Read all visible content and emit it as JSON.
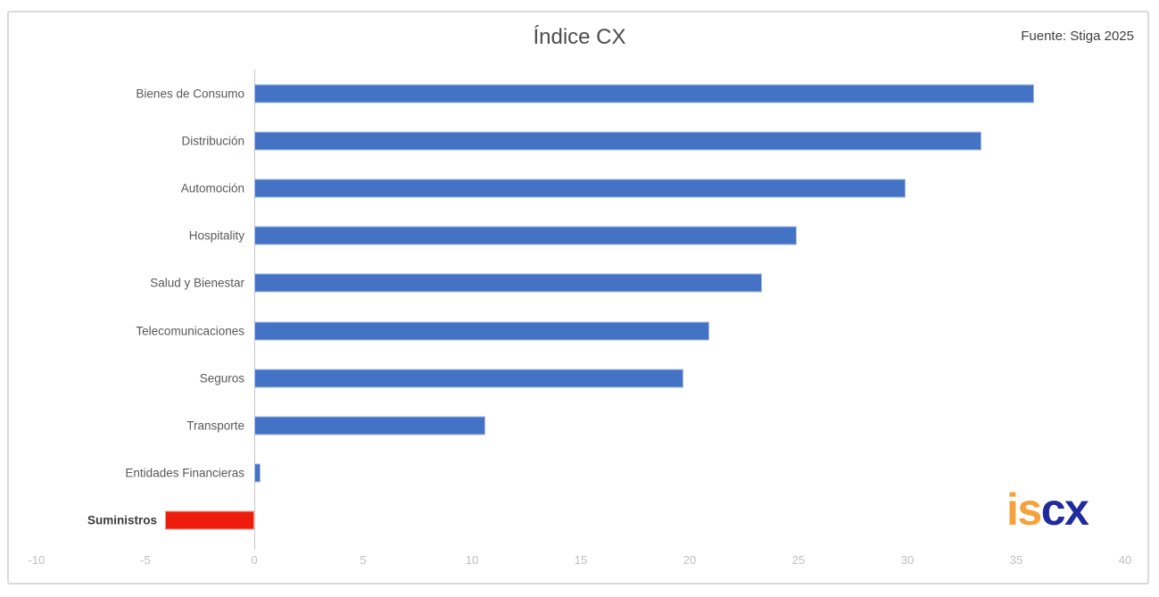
{
  "title": "Índice CX",
  "source": "Fuente: Stiga 2025",
  "logo": {
    "part1": "is",
    "part2": "cx"
  },
  "colors": {
    "bar_positive": "#4472C4",
    "bar_negative": "#ED1C0C",
    "logo_orange": "#F6A13C",
    "logo_navy": "#202B9E",
    "tick_label": "#BFBFBF",
    "category_label": "#595959",
    "axis_line": "#C6C6C6",
    "frame_border": "#D9D9D9"
  },
  "chart_data": {
    "type": "bar",
    "orientation": "horizontal",
    "title": "Índice CX",
    "xlabel": "",
    "ylabel": "",
    "categories": [
      "Bienes de Consumo",
      "Distribución",
      "Automoción",
      "Hospitality",
      "Salud y Bienestar",
      "Telecomunicaciones",
      "Seguros",
      "Transporte",
      "Entidades Financieras",
      "Suministros"
    ],
    "values": [
      35.8,
      33.4,
      29.9,
      24.9,
      23.3,
      20.9,
      19.7,
      10.6,
      0.3,
      -4.1
    ],
    "highlight_category": "Suministros",
    "xlim": [
      -10,
      40
    ],
    "xticks": [
      -10,
      -5,
      0,
      5,
      10,
      15,
      20,
      25,
      30,
      35,
      40
    ],
    "grid": false,
    "legend": false
  }
}
